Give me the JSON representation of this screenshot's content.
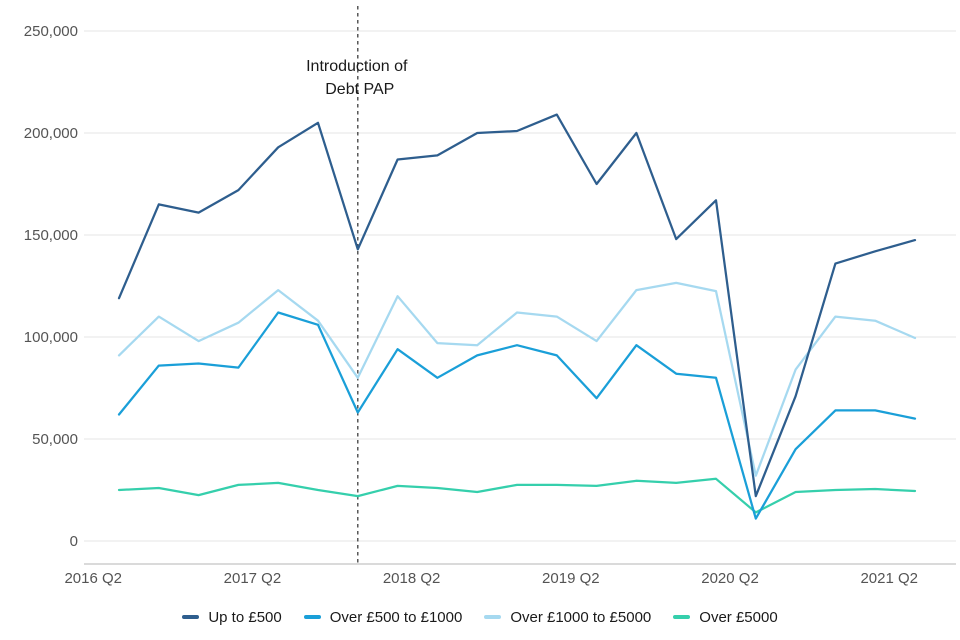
{
  "chart_data": {
    "type": "line",
    "title": "",
    "x_categories": [
      "2016 Q2",
      "2016 Q3",
      "2016 Q4",
      "2017 Q1",
      "2017 Q2",
      "2017 Q3",
      "2017 Q4",
      "2018 Q1",
      "2018 Q2",
      "2018 Q3",
      "2018 Q4",
      "2019 Q1",
      "2019 Q2",
      "2019 Q3",
      "2019 Q4",
      "2020 Q1",
      "2020 Q2",
      "2020 Q3",
      "2020 Q4",
      "2021 Q1",
      "2021 Q2"
    ],
    "x_tick_labels": [
      "2016 Q2",
      "2017 Q2",
      "2018 Q2",
      "2019 Q2",
      "2020 Q2",
      "2021 Q2"
    ],
    "y_ticks": [
      0,
      50000,
      100000,
      150000,
      200000,
      250000
    ],
    "y_tick_labels": [
      "0",
      "50,000",
      "100,000",
      "150,000",
      "200,000",
      "250,000"
    ],
    "ylim": [
      0,
      262500
    ],
    "grid": "horizontal-only",
    "legend_position": "bottom",
    "series": [
      {
        "id": "up-to-500",
        "name": "Up to £500",
        "color": "#2e5e8e",
        "values": [
          119000,
          165000,
          161000,
          172000,
          193000,
          205000,
          143000,
          187000,
          189000,
          200000,
          201000,
          209000,
          175000,
          200000,
          148000,
          167000,
          22000,
          71000,
          136000,
          142000,
          147500
        ]
      },
      {
        "id": "over-500-to-1000",
        "name": "Over £500 to £1000",
        "color": "#1a9fd8",
        "values": [
          62000,
          86000,
          87000,
          85000,
          112000,
          106000,
          63000,
          94000,
          80000,
          91000,
          96000,
          91000,
          70000,
          96000,
          82000,
          80000,
          11000,
          45000,
          64000,
          64000,
          60000
        ]
      },
      {
        "id": "over-1000-to-5000",
        "name": "Over £1000 to £5000",
        "color": "#a6d9f0",
        "values": [
          91000,
          110000,
          98000,
          107000,
          123000,
          108000,
          80000,
          120000,
          97000,
          96000,
          112000,
          110000,
          98000,
          123000,
          126500,
          122500,
          32000,
          84000,
          110000,
          108000,
          99500
        ]
      },
      {
        "id": "over-5000",
        "name": "Over £5000",
        "color": "#35cfac",
        "values": [
          25000,
          26000,
          22500,
          27500,
          28500,
          25000,
          22000,
          27000,
          26000,
          24000,
          27500,
          27500,
          27000,
          29500,
          28500,
          30500,
          14000,
          24000,
          25000,
          25500,
          24500
        ]
      }
    ],
    "annotation": {
      "line1": "Introduction of",
      "line2": "Debt PAP",
      "x_category": "2017 Q4",
      "style": "vertical-dashed-line"
    }
  },
  "colors": {
    "background": "#ffffff",
    "gridline": "#e4e4e4",
    "axis_line": "#c4c4c4",
    "tick_text": "#545454",
    "dashed_line": "#3d3d3d",
    "annotation_text": "#1a1a1a"
  }
}
